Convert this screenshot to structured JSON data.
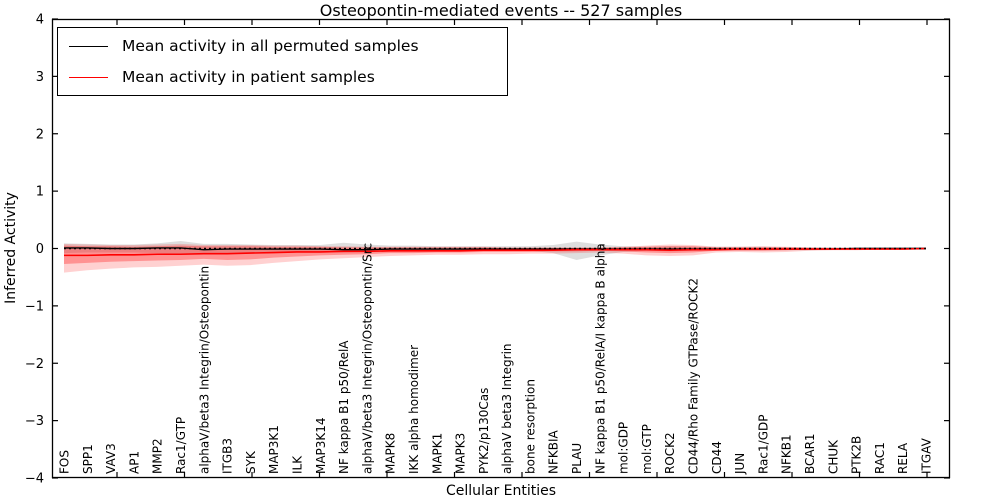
{
  "figure": {
    "title": "Osteopontin-mediated events -- 527 samples",
    "xlabel": "Cellular Entities",
    "ylabel": "Inferred Activity",
    "background_color": "#ffffff",
    "axis_color": "#000000"
  },
  "legend": {
    "position": "upper left",
    "items": [
      {
        "label": "Mean activity in all permuted samples",
        "color": "#000000"
      },
      {
        "label": "Mean activity in patient samples",
        "color": "#ff0000"
      }
    ]
  },
  "chart_data": {
    "type": "line",
    "title": "Osteopontin-mediated events -- 527 samples",
    "xlabel": "Cellular Entities",
    "ylabel": "Inferred Activity",
    "ylim": [
      -4,
      4
    ],
    "ytick_labels": [
      "−4",
      "−3",
      "−2",
      "−1",
      "0",
      "1",
      "2",
      "3",
      "4"
    ],
    "grid": false,
    "legend_position": "upper left",
    "categories": [
      "FOS",
      "SPP1",
      "VAV3",
      "AP1",
      "MMP2",
      "Rac1/GTP",
      "alphaV/beta3 Integrin/Osteopontin",
      "ITGB3",
      "SYK",
      "MAP3K1",
      "ILK",
      "MAP3K14",
      "NF kappa B1 p50/RelA",
      "alphaV/beta3 Integrin/Osteopontin/Src",
      "MAPK8",
      "IKK alpha homodimer",
      "MAPK1",
      "MAPK3",
      "PYK2/p130Cas",
      "alphaV beta3 Integrin",
      "bone resorption",
      "NFKBIA",
      "PLAU",
      "NF kappa B1 p50/RelA/I kappa B alpha",
      "mol:GDP",
      "mol:GTP",
      "ROCK2",
      "CD44/Rho Family GTPase/ROCK2",
      "CD44",
      "JUN",
      "Rac1/GDP",
      "NFKB1",
      "BCAR1",
      "CHUK",
      "PTK2B",
      "RAC1",
      "RELA",
      "ITGAV"
    ],
    "series": [
      {
        "name": "Mean activity in all permuted samples",
        "color": "#000000",
        "dash": "none",
        "width": 1.4,
        "values": [
          0.01,
          0.01,
          0.0,
          0.0,
          0.01,
          0.01,
          -0.02,
          -0.01,
          -0.01,
          -0.01,
          -0.01,
          -0.01,
          -0.02,
          -0.02,
          -0.01,
          -0.01,
          -0.01,
          -0.01,
          -0.01,
          -0.01,
          -0.01,
          -0.01,
          -0.01,
          -0.01,
          -0.01,
          -0.01,
          -0.01,
          -0.01,
          -0.01,
          -0.01,
          -0.01,
          -0.01,
          -0.01,
          -0.01,
          0.0,
          0.0,
          0.0,
          0.0
        ]
      },
      {
        "name": "Mean activity in patient samples",
        "color": "#ff0000",
        "dash": "none",
        "width": 1.6,
        "values": [
          -0.12,
          -0.12,
          -0.11,
          -0.11,
          -0.1,
          -0.1,
          -0.09,
          -0.09,
          -0.08,
          -0.07,
          -0.06,
          -0.06,
          -0.05,
          -0.05,
          -0.04,
          -0.04,
          -0.04,
          -0.04,
          -0.03,
          -0.03,
          -0.03,
          -0.03,
          -0.02,
          -0.02,
          -0.02,
          -0.02,
          -0.03,
          -0.02,
          -0.02,
          -0.01,
          -0.01,
          -0.01,
          -0.01,
          -0.01,
          -0.01,
          -0.01,
          -0.01,
          0.0
        ]
      }
    ],
    "reference_line": {
      "name": "zero-reference",
      "value": 0,
      "color": "#000000",
      "dash": "2 3",
      "width": 1.4
    },
    "bands": [
      {
        "name": "permuted-samples-range",
        "fill": "#000000",
        "opacity": 0.13,
        "upper": [
          0.09,
          0.08,
          0.07,
          0.07,
          0.09,
          0.13,
          0.08,
          0.08,
          0.07,
          0.06,
          0.06,
          0.06,
          0.1,
          0.07,
          0.05,
          0.05,
          0.04,
          0.04,
          0.04,
          0.04,
          0.04,
          0.06,
          0.12,
          0.07,
          0.04,
          0.03,
          0.04,
          0.03,
          0.03,
          0.03,
          0.03,
          0.02,
          0.02,
          0.02,
          0.02,
          0.02,
          0.02,
          0.02
        ],
        "lower": [
          -0.08,
          -0.07,
          -0.07,
          -0.07,
          -0.08,
          -0.1,
          -0.08,
          -0.08,
          -0.07,
          -0.06,
          -0.06,
          -0.06,
          -0.07,
          -0.06,
          -0.05,
          -0.05,
          -0.04,
          -0.04,
          -0.04,
          -0.04,
          -0.04,
          -0.08,
          -0.2,
          -0.12,
          -0.06,
          -0.04,
          -0.05,
          -0.04,
          -0.03,
          -0.03,
          -0.03,
          -0.03,
          -0.03,
          -0.02,
          -0.02,
          -0.02,
          -0.02,
          -0.02
        ]
      },
      {
        "name": "patient-samples-outer-range",
        "fill": "#ff0000",
        "opacity": 0.18,
        "upper": [
          0.08,
          0.07,
          0.06,
          0.06,
          0.07,
          0.08,
          0.06,
          0.06,
          0.06,
          0.05,
          0.05,
          0.04,
          0.04,
          0.03,
          0.03,
          0.03,
          0.03,
          0.03,
          0.03,
          0.02,
          0.02,
          0.02,
          0.02,
          0.02,
          0.03,
          0.05,
          0.07,
          0.06,
          0.03,
          0.03,
          0.04,
          0.03,
          0.02,
          0.01,
          0.01,
          0.01,
          0.01,
          0.01
        ],
        "lower": [
          -0.42,
          -0.38,
          -0.35,
          -0.33,
          -0.32,
          -0.3,
          -0.28,
          -0.3,
          -0.29,
          -0.25,
          -0.22,
          -0.19,
          -0.17,
          -0.15,
          -0.13,
          -0.12,
          -0.11,
          -0.11,
          -0.1,
          -0.1,
          -0.09,
          -0.09,
          -0.08,
          -0.07,
          -0.09,
          -0.12,
          -0.13,
          -0.12,
          -0.07,
          -0.06,
          -0.07,
          -0.06,
          -0.04,
          -0.03,
          -0.03,
          -0.02,
          -0.02,
          -0.02
        ]
      },
      {
        "name": "patient-samples-inner-range",
        "fill": "#ff0000",
        "opacity": 0.3,
        "upper": [
          0.05,
          0.04,
          0.04,
          0.03,
          0.04,
          0.05,
          0.04,
          0.04,
          0.04,
          0.03,
          0.03,
          0.03,
          0.02,
          0.02,
          0.02,
          0.02,
          0.02,
          0.02,
          0.02,
          0.01,
          0.01,
          0.01,
          0.01,
          0.01,
          0.02,
          0.03,
          0.04,
          0.04,
          0.02,
          0.02,
          0.02,
          0.02,
          0.01,
          0.01,
          0.01,
          0.01,
          0.01,
          0.01
        ],
        "lower": [
          -0.27,
          -0.25,
          -0.23,
          -0.22,
          -0.21,
          -0.2,
          -0.18,
          -0.2,
          -0.19,
          -0.16,
          -0.14,
          -0.12,
          -0.11,
          -0.1,
          -0.08,
          -0.08,
          -0.07,
          -0.07,
          -0.06,
          -0.06,
          -0.06,
          -0.05,
          -0.05,
          -0.04,
          -0.05,
          -0.07,
          -0.08,
          -0.07,
          -0.04,
          -0.04,
          -0.04,
          -0.03,
          -0.02,
          -0.02,
          -0.02,
          -0.02,
          -0.01,
          -0.01
        ]
      }
    ]
  }
}
